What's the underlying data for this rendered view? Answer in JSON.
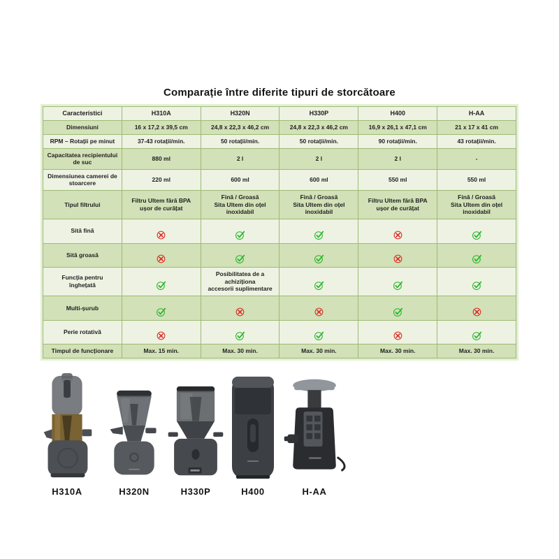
{
  "title": "Comparație între diferite tipuri de storcătoare",
  "table": {
    "columns": [
      "Caracteristici",
      "H310A",
      "H320N",
      "H330P",
      "H400",
      "H-AA"
    ],
    "rows": [
      {
        "label": "Dimensiuni",
        "values": [
          {
            "text": "16 x 17,2 x 39,5 cm"
          },
          {
            "text": "24,8 x 22,3 x 46,2 cm"
          },
          {
            "text": "24,8 x 22,3 x 46,2 cm"
          },
          {
            "text": "16,9 x 26,1 x 47,1 cm"
          },
          {
            "text": "21 x 17 x 41 cm"
          }
        ]
      },
      {
        "label": "RPM – Rotații pe minut",
        "values": [
          {
            "text": "37-43 rotații/min."
          },
          {
            "text": "50 rotații/min."
          },
          {
            "text": "50 rotații/min."
          },
          {
            "text": "90 rotații/min."
          },
          {
            "text": "43 rotații/min."
          }
        ]
      },
      {
        "label": "Capacitatea recipientului\nde suc",
        "values": [
          {
            "text": "880 ml"
          },
          {
            "text": "2 l"
          },
          {
            "text": "2 l"
          },
          {
            "text": "2 l"
          },
          {
            "text": "-"
          }
        ]
      },
      {
        "label": "Dimensiunea camerei de\nstoarcere",
        "values": [
          {
            "text": "220 ml"
          },
          {
            "text": "600 ml"
          },
          {
            "text": "600 ml"
          },
          {
            "text": "550 ml"
          },
          {
            "text": "550 ml"
          }
        ]
      },
      {
        "label": "Tipul filtrului",
        "values": [
          {
            "text": "Filtru Ultem fără BPA\nușor de curățat"
          },
          {
            "text": "Fină / Groasă\nSita Ultem din oțel\ninoxidabil"
          },
          {
            "text": "Fină / Groasă\nSita Ultem din oțel\ninoxidabil"
          },
          {
            "text": "Filtru Ultem fără BPA\nușor de curățat"
          },
          {
            "text": "Fină / Groasă\nSita Ultem din oțel\ninoxidabil"
          }
        ]
      },
      {
        "label": "Sită fină",
        "values": [
          {
            "icon": "cross-circle-icon"
          },
          {
            "icon": "check-circle-icon"
          },
          {
            "icon": "check-circle-icon"
          },
          {
            "icon": "cross-circle-icon"
          },
          {
            "icon": "check-circle-icon"
          }
        ]
      },
      {
        "label": "Sită groasă",
        "values": [
          {
            "icon": "cross-circle-icon"
          },
          {
            "icon": "check-circle-icon"
          },
          {
            "icon": "check-circle-icon"
          },
          {
            "icon": "cross-circle-icon"
          },
          {
            "icon": "check-circle-icon"
          }
        ]
      },
      {
        "label": "Funcția pentru\nînghețată",
        "values": [
          {
            "icon": "check-circle-icon"
          },
          {
            "text": "Posibilitatea de a achiziționa\naccesorii suplimentare"
          },
          {
            "icon": "check-circle-icon"
          },
          {
            "icon": "check-circle-icon"
          },
          {
            "icon": "check-circle-icon"
          }
        ]
      },
      {
        "label": "Multi-șurub",
        "values": [
          {
            "icon": "check-circle-icon"
          },
          {
            "icon": "cross-circle-icon"
          },
          {
            "icon": "cross-circle-icon"
          },
          {
            "icon": "check-circle-icon"
          },
          {
            "icon": "cross-circle-icon"
          }
        ]
      },
      {
        "label": "Perie rotativă",
        "values": [
          {
            "icon": "cross-circle-icon"
          },
          {
            "icon": "check-circle-icon"
          },
          {
            "icon": "check-circle-icon"
          },
          {
            "icon": "cross-circle-icon"
          },
          {
            "icon": "check-circle-icon"
          }
        ]
      },
      {
        "label": "Timpul de funcționare",
        "values": [
          {
            "text": "Max. 15 min."
          },
          {
            "text": "Max. 30 min."
          },
          {
            "text": "Max. 30 min."
          },
          {
            "text": "Max. 30 min."
          },
          {
            "text": "Max. 30 min."
          }
        ]
      }
    ]
  },
  "products": [
    {
      "label": "H310A"
    },
    {
      "label": "H320N"
    },
    {
      "label": "H330P"
    },
    {
      "label": "H400"
    },
    {
      "label": "H-AA"
    }
  ],
  "colors": {
    "row_light": "#edf2e2",
    "row_dark": "#d2e1b7",
    "table_border": "#9dba74",
    "outer_frame": "#e3efd2",
    "check_green": "#28b52c",
    "cross_red": "#dc2a23",
    "text": "#222222"
  }
}
